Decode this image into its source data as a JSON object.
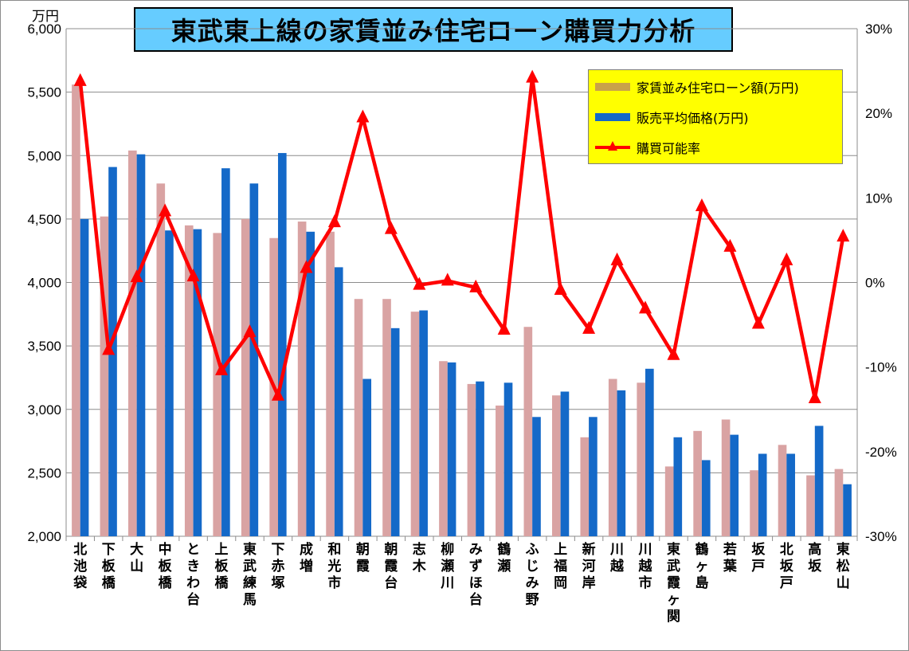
{
  "title": "東武東上線の家賃並み住宅ローン購買力分析",
  "unit_label": "万円",
  "colors": {
    "loan_bar": "#d9a3a3",
    "price_bar": "#1469c8",
    "rate_line": "#ff0000",
    "legend_bg": "#ffff00",
    "title_bg": "#66ccff"
  },
  "legend": {
    "loan": "家賃並み住宅ローン額(万円)",
    "price": "販売平均価格(万円)",
    "rate": "購買可能率"
  },
  "chart_data": {
    "type": "bar",
    "categories": [
      "北池袋",
      "下板橋",
      "大山",
      "中板橋",
      "ときわ台",
      "上板橋",
      "東武練馬",
      "下赤塚",
      "成増",
      "和光市",
      "朝霞",
      "朝霞台",
      "志木",
      "柳瀬川",
      "みずほ台",
      "鶴瀬",
      "ふじみ野",
      "上福岡",
      "新河岸",
      "川越",
      "川越市",
      "東武霞ヶ関",
      "鶴ヶ島",
      "若葉",
      "坂戸",
      "北坂戸",
      "高坂",
      "東松山"
    ],
    "series": [
      {
        "name": "家賃並み住宅ローン額(万円)",
        "type": "bar",
        "axis": "left",
        "values": [
          5560,
          4520,
          5040,
          4780,
          4450,
          4390,
          4500,
          4350,
          4480,
          4400,
          3870,
          3870,
          3770,
          3380,
          3200,
          3030,
          3650,
          3110,
          2780,
          3240,
          3210,
          2550,
          2830,
          2920,
          2520,
          2720,
          2480,
          2530
        ]
      },
      {
        "name": "販売平均価格(万円)",
        "type": "bar",
        "axis": "left",
        "values": [
          4500,
          4910,
          5010,
          4410,
          4420,
          4900,
          4780,
          5020,
          4400,
          4120,
          3240,
          3640,
          3780,
          3370,
          3220,
          3210,
          2940,
          3140,
          2940,
          3150,
          3320,
          2780,
          2600,
          2800,
          2650,
          2650,
          2870,
          2410
        ]
      },
      {
        "name": "購買可能率",
        "type": "line",
        "axis": "right",
        "values": [
          23.8,
          -8.0,
          0.6,
          8.4,
          0.7,
          -10.4,
          -5.9,
          -13.4,
          1.7,
          7.1,
          19.5,
          6.3,
          -0.3,
          0.2,
          -0.6,
          -5.6,
          24.2,
          -0.9,
          -5.5,
          2.6,
          -3.1,
          -8.6,
          9.0,
          4.2,
          -4.9,
          2.6,
          -13.7,
          5.4
        ]
      }
    ],
    "y_left": {
      "min": 2000,
      "max": 6000,
      "ticks": [
        "2,000",
        "2,500",
        "3,000",
        "3,500",
        "4,000",
        "4,500",
        "5,000",
        "5,500",
        "6,000"
      ],
      "tick_values": [
        2000,
        2500,
        3000,
        3500,
        4000,
        4500,
        5000,
        5500,
        6000
      ]
    },
    "y_right": {
      "min": -30,
      "max": 30,
      "ticks": [
        "-30%",
        "-20%",
        "-10%",
        "0%",
        "10%",
        "20%",
        "30%"
      ],
      "tick_values": [
        -30,
        -20,
        -10,
        0,
        10,
        20,
        30
      ]
    },
    "grid": true,
    "legend_position": "top-right"
  }
}
